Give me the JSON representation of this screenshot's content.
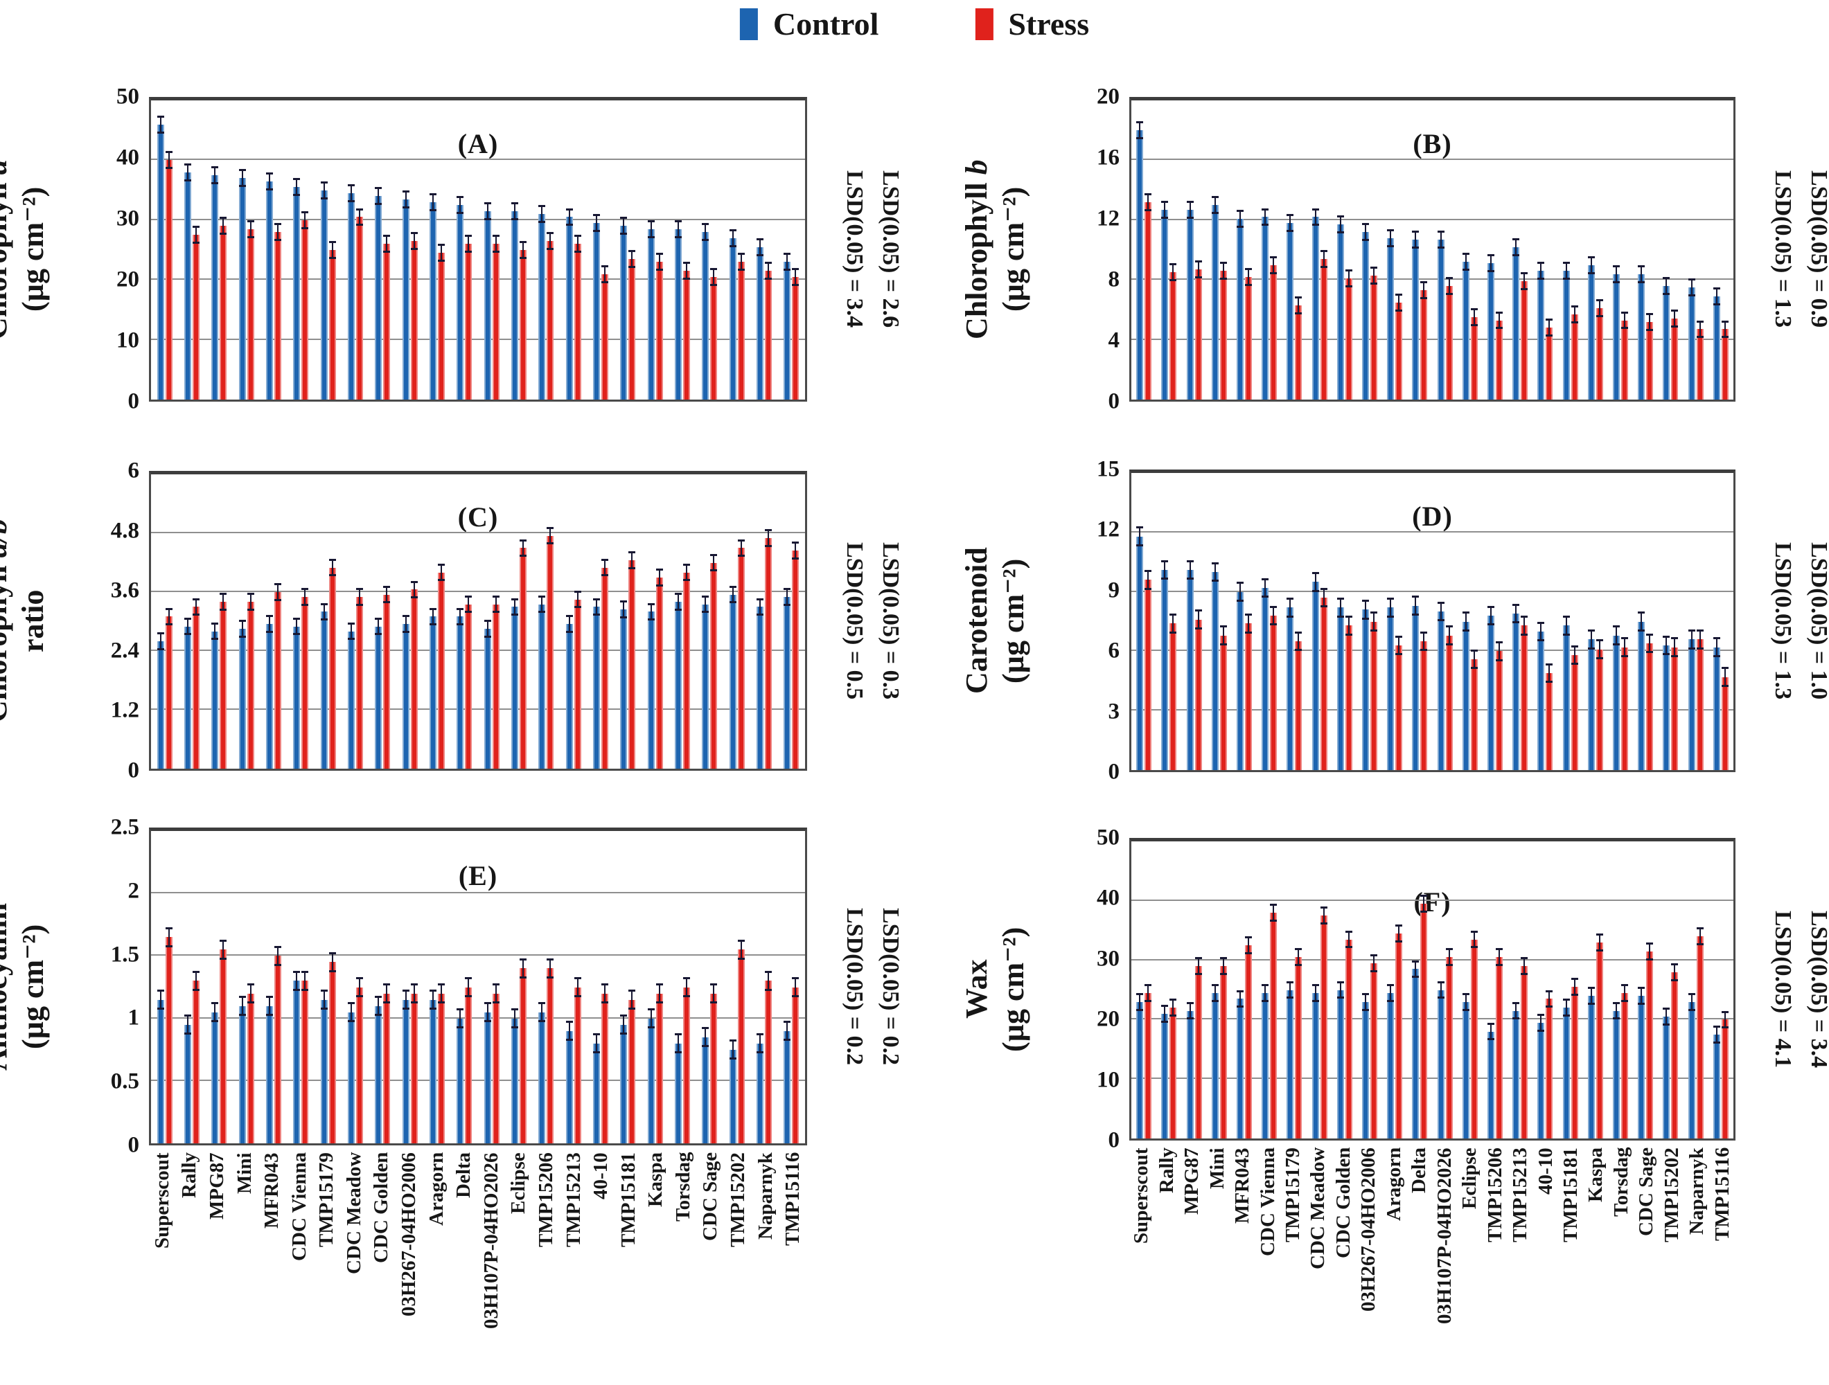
{
  "legend": {
    "items": [
      {
        "label": "Control",
        "color": "#1d64b0"
      },
      {
        "label": "Stress",
        "color": "#e0221c"
      }
    ]
  },
  "categories": [
    "Superscout",
    "Rally",
    "MPG87",
    "Mini",
    "MFR043",
    "CDC Vienna",
    "TMP15179",
    "CDC Meadow",
    "CDC Golden",
    "03H267-04HO2006",
    "Aragorn",
    "Delta",
    "03H107P-04HO2026",
    "Eclipse",
    "TMP15206",
    "TMP15213",
    "40-10",
    "TMP15181",
    "Kaspa",
    "Torsdag",
    "CDC Sage",
    "TMP15202",
    "Naparnyk",
    "TMP15116"
  ],
  "chart_data": [
    {
      "id": "A",
      "type": "bar",
      "title": "(A)",
      "ylabel_main": "Chlorophyll",
      "ylabel_var": "a",
      "ylabel_unit": "(µg cm⁻²)",
      "ymax": 50,
      "yticks": [
        0,
        10,
        20,
        30,
        40,
        50
      ],
      "err": 1.5,
      "lsd": [
        "LSD(0.05) = 3.4",
        "LSD(0.05) = 2.6"
      ],
      "series": [
        {
          "name": "Control",
          "values": [
            46,
            38,
            37.5,
            37,
            36.5,
            35.5,
            35,
            34.5,
            34,
            33.5,
            33,
            32.5,
            31.5,
            31.5,
            31,
            30.5,
            29.5,
            29,
            28.5,
            28.5,
            28,
            27,
            25.5,
            23
          ]
        },
        {
          "name": "Stress",
          "values": [
            40,
            27.5,
            29,
            28.5,
            28,
            30,
            25,
            30.5,
            26,
            26.5,
            24.5,
            26,
            26,
            25,
            26.5,
            26,
            21,
            23.5,
            23,
            21.5,
            20.5,
            23,
            21.5,
            20.5
          ]
        }
      ]
    },
    {
      "id": "B",
      "type": "bar",
      "title": "(B)",
      "ylabel_main": "Chlorophyll",
      "ylabel_var": "b",
      "ylabel_unit": "(µg cm⁻²)",
      "ymax": 20,
      "yticks": [
        0,
        4,
        8,
        12,
        16,
        20
      ],
      "err": 0.6,
      "lsd": [
        "LSD(0.05) = 1.3",
        "LSD(0.05) = 0.9"
      ],
      "series": [
        {
          "name": "Control",
          "values": [
            18,
            12.7,
            12.7,
            13,
            12.1,
            12.2,
            11.8,
            12.2,
            11.7,
            11.2,
            10.8,
            10.7,
            10.7,
            9.2,
            9.1,
            10.2,
            8.6,
            8.6,
            9,
            8.4,
            8.4,
            7.6,
            7.5,
            6.9
          ]
        },
        {
          "name": "Stress",
          "values": [
            13.2,
            8.5,
            8.7,
            8.6,
            8.2,
            9,
            6.3,
            9.4,
            8.1,
            8.3,
            6.5,
            7.3,
            7.6,
            5.5,
            5.3,
            7.9,
            4.8,
            5.7,
            6.1,
            5.3,
            5.2,
            5.4,
            4.7,
            4.7
          ]
        }
      ]
    },
    {
      "id": "C",
      "type": "bar",
      "title": "(C)",
      "ylabel_main": "Chlorophyll",
      "ylabel_var": "a/b",
      "ylabel_unit": "ratio",
      "ymax": 6,
      "yticks": [
        0,
        1.2,
        2.4,
        3.6,
        4.8,
        6
      ],
      "err": 0.18,
      "lsd": [
        "LSD(0.05) = 0.5",
        "LSD(0.05) = 0.3"
      ],
      "series": [
        {
          "name": "Control",
          "values": [
            2.6,
            2.9,
            2.8,
            2.85,
            2.95,
            2.9,
            3.2,
            2.8,
            2.9,
            2.95,
            3.1,
            3.1,
            2.85,
            3.3,
            3.35,
            2.95,
            3.3,
            3.25,
            3.2,
            3.4,
            3.35,
            3.55,
            3.3,
            3.5
          ]
        },
        {
          "name": "Stress",
          "values": [
            3.1,
            3.3,
            3.4,
            3.4,
            3.6,
            3.5,
            4.1,
            3.5,
            3.55,
            3.65,
            4,
            3.35,
            3.35,
            4.5,
            4.75,
            3.45,
            4.1,
            4.25,
            3.9,
            4,
            4.2,
            4.5,
            4.7,
            4.45
          ]
        }
      ]
    },
    {
      "id": "D",
      "type": "bar",
      "title": "(D)",
      "ylabel_main": "Carotenoid",
      "ylabel_var": "",
      "ylabel_unit": "(µg cm⁻²)",
      "ymax": 15,
      "yticks": [
        0,
        3,
        6,
        9,
        12,
        15
      ],
      "err": 0.5,
      "lsd": [
        "LSD(0.05) = 1.3",
        "LSD(0.05) = 1.0"
      ],
      "series": [
        {
          "name": "Control",
          "values": [
            11.8,
            10.1,
            10.1,
            10,
            9,
            9.2,
            8.2,
            9.5,
            8.2,
            8.1,
            8.2,
            8.3,
            8,
            7.5,
            7.8,
            7.9,
            7,
            7.3,
            6.6,
            6.8,
            7.5,
            6.3,
            6.6,
            6.2
          ]
        },
        {
          "name": "Stress",
          "values": [
            9.6,
            7.4,
            7.6,
            6.8,
            7.4,
            7.8,
            6.5,
            8.7,
            7.3,
            7.5,
            6.3,
            6.5,
            6.8,
            5.6,
            6,
            7.3,
            4.9,
            5.8,
            6.1,
            6.2,
            6.4,
            6.2,
            6.6,
            4.7
          ]
        }
      ]
    },
    {
      "id": "E",
      "type": "bar",
      "title": "(E)",
      "ylabel_main": "Anthocyanin",
      "ylabel_var": "",
      "ylabel_unit": "(µg cm⁻²)",
      "ymax": 2.5,
      "yticks": [
        0,
        0.5,
        1,
        1.5,
        2,
        2.5
      ],
      "err": 0.08,
      "lsd": [
        "LSD(0.05) = 0.2",
        "LSD(0.05) = 0.2"
      ],
      "series": [
        {
          "name": "Control",
          "values": [
            1.15,
            0.95,
            1.05,
            1.1,
            1.1,
            1.3,
            1.15,
            1.05,
            1.1,
            1.15,
            1.15,
            1,
            1.05,
            1,
            1.05,
            0.9,
            0.8,
            0.95,
            1,
            0.8,
            0.85,
            0.75,
            0.8,
            0.9
          ]
        },
        {
          "name": "Stress",
          "values": [
            1.65,
            1.3,
            1.55,
            1.2,
            1.5,
            1.3,
            1.45,
            1.25,
            1.2,
            1.2,
            1.2,
            1.25,
            1.2,
            1.4,
            1.4,
            1.25,
            1.2,
            1.15,
            1.2,
            1.25,
            1.2,
            1.55,
            1.3,
            1.25
          ]
        }
      ]
    },
    {
      "id": "F",
      "type": "bar",
      "title": "(F)",
      "ylabel_main": "Wax",
      "ylabel_var": "",
      "ylabel_unit": "(µg cm⁻²)",
      "ymax": 50,
      "yticks": [
        0,
        10,
        20,
        30,
        40,
        50
      ],
      "err": 1.5,
      "lsd": [
        "LSD(0.05) = 4.1",
        "LSD(0.05) = 3.4"
      ],
      "series": [
        {
          "name": "Control",
          "values": [
            23,
            21,
            21.5,
            24.5,
            23.5,
            24.5,
            25,
            24.5,
            25,
            23,
            24.5,
            28.5,
            25,
            23,
            18,
            21.5,
            19.5,
            22,
            24,
            21.5,
            24,
            20.5,
            23,
            17.5
          ]
        },
        {
          "name": "Stress",
          "values": [
            24.5,
            22,
            29,
            29,
            32.5,
            38,
            30.5,
            37.5,
            33.5,
            29.5,
            34.5,
            39.5,
            30.5,
            33.5,
            30.5,
            29,
            23.5,
            25.5,
            33,
            24.5,
            31.5,
            28,
            34,
            20
          ]
        }
      ]
    }
  ]
}
